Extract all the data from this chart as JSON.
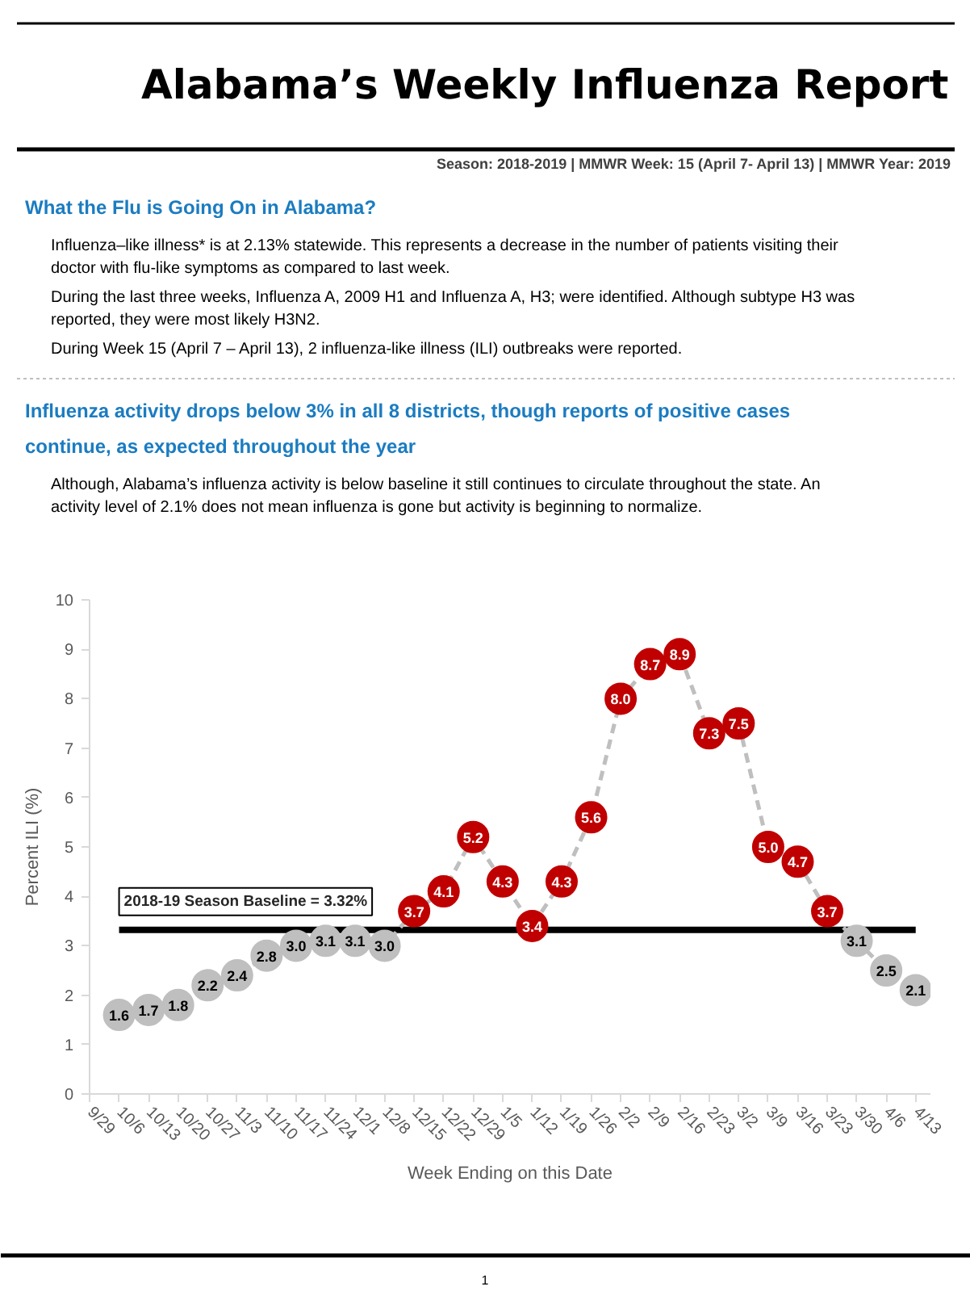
{
  "chart_data": {
    "type": "line",
    "title": "Alabama’s Weekly Influenza Report",
    "subtitle": "Season: 2018-2019 | MMWR Week: 15 (April 7- April 13) | MMWR Year: 2019",
    "annotations": [
      "What the Flu is Going On in Alabama?",
      "Influenza–like illness* is at 2.13% statewide. This represents a decrease in the number of patients visiting their doctor with flu-like symptoms as compared to last week.",
      "During the last three weeks, Influenza A, 2009 H1 and Influenza A, H3; were identified. Although subtype H3 was reported, they were most likely H3N2.",
      "During Week 15 (April 7 – April 13), 2 influenza-like illness (ILI) outbreaks were reported.",
      "Influenza activity drops below 3% in all 8 districts, though reports of positive cases continue, as expected throughout the year",
      "Although, Alabama’s influenza activity is below baseline it still continues to circulate throughout the state. An activity level of 2.1% does not mean influenza is gone but activity is beginning to normalize.",
      "1"
    ],
    "xlabel": "Week Ending on this Date",
    "ylabel": "Percent ILI (%)",
    "categories": [
      "9/29",
      "10/6",
      "10/13",
      "10/20",
      "10/27",
      "11/3",
      "11/10",
      "11/17",
      "11/24",
      "12/1",
      "12/8",
      "12/15",
      "12/22",
      "12/29",
      "1/5",
      "1/12",
      "1/19",
      "1/26",
      "2/2",
      "2/9",
      "2/16",
      "2/23",
      "3/2",
      "3/9",
      "3/16",
      "3/23",
      "3/30",
      "4/6",
      "4/13"
    ],
    "series": [
      {
        "color": "#bfbfbf",
        "values": [
          null,
          1.6,
          1.7,
          1.8,
          2.2,
          2.4,
          2.8,
          3.0,
          3.1,
          3.1,
          3.0,
          3.7,
          4.1,
          5.2,
          4.3,
          3.4,
          4.3,
          5.6,
          8.0,
          8.7,
          8.9,
          7.3,
          7.5,
          5.0,
          4.7,
          3.7,
          3.1,
          2.5,
          2.1
        ],
        "value_labels": [
          null,
          "1.6",
          "1.7",
          "1.8",
          "2.2",
          "2.4",
          "2.8",
          "3.0",
          "3.1",
          "3.1",
          "3.0",
          "3.7",
          "4.1",
          "5.2",
          "4.3",
          "3.4",
          "4.3",
          "5.6",
          "8.0",
          "8.7",
          "8.9",
          "7.3",
          "7.5",
          "5.0",
          "4.7",
          "3.7",
          "3.1",
          "2.5",
          "2.1"
        ],
        "colors": [
          null,
          "#bfbfbf",
          "#bfbfbf",
          "#bfbfbf",
          "#bfbfbf",
          "#bfbfbf",
          "#bfbfbf",
          "#bfbfbf",
          "#bfbfbf",
          "#bfbfbf",
          "#bfbfbf",
          "#c00000",
          "#c00000",
          "#c00000",
          "#c00000",
          "#c00000",
          "#c00000",
          "#c00000",
          "#c00000",
          "#c00000",
          "#c00000",
          "#c00000",
          "#c00000",
          "#c00000",
          "#c00000",
          "#c00000",
          "#bfbfbf",
          "#bfbfbf",
          "#bfbfbf"
        ]
      }
    ],
    "marker": "circle",
    "line_style": "dashed",
    "ylim": [
      0,
      10
    ],
    "yticks": [
      0,
      1,
      2,
      3,
      4,
      5,
      6,
      7,
      8,
      9,
      10
    ],
    "ref_lines": [
      {
        "axis": "y",
        "value": 3.32,
        "label": "2018-19 Season Baseline = 3.32%",
        "color": "#000000"
      }
    ]
  }
}
